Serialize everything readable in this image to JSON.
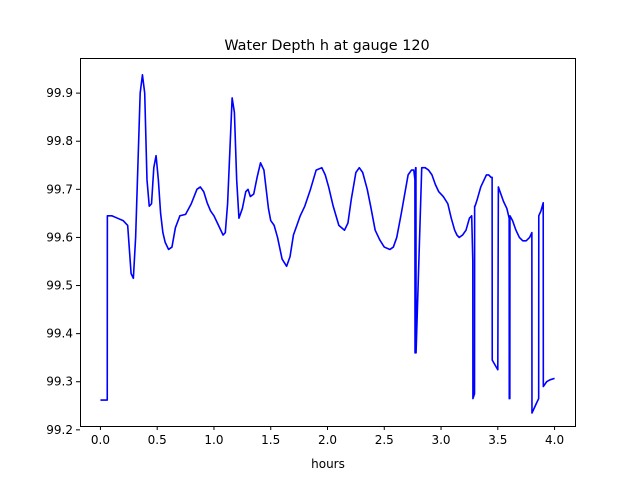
{
  "chart_data": {
    "type": "line",
    "title": "Water Depth h at gauge 120",
    "xlabel": "hours",
    "ylabel": "",
    "xlim": [
      -0.18,
      4.18
    ],
    "ylim": [
      99.208,
      99.973
    ],
    "xticks": [
      0.0,
      0.5,
      1.0,
      1.5,
      2.0,
      2.5,
      3.0,
      3.5,
      4.0
    ],
    "xtick_labels": [
      "0.0",
      "0.5",
      "1.0",
      "1.5",
      "2.0",
      "2.5",
      "3.0",
      "3.5",
      "4.0"
    ],
    "yticks": [
      99.2,
      99.3,
      99.4,
      99.5,
      99.6,
      99.7,
      99.8,
      99.9
    ],
    "ytick_labels": [
      "99.2",
      "99.3",
      "99.4",
      "99.5",
      "99.6",
      "99.7",
      "99.8",
      "99.9"
    ],
    "grid": false,
    "series": [
      {
        "color": "#0000ff",
        "x": [
          0.0,
          0.06,
          0.061,
          0.1,
          0.15,
          0.2,
          0.24,
          0.27,
          0.29,
          0.31,
          0.33,
          0.35,
          0.37,
          0.39,
          0.41,
          0.43,
          0.45,
          0.47,
          0.49,
          0.51,
          0.53,
          0.55,
          0.57,
          0.6,
          0.63,
          0.66,
          0.7,
          0.75,
          0.8,
          0.85,
          0.88,
          0.91,
          0.94,
          0.97,
          1.0,
          1.04,
          1.08,
          1.1,
          1.12,
          1.14,
          1.16,
          1.18,
          1.2,
          1.22,
          1.25,
          1.28,
          1.3,
          1.32,
          1.35,
          1.38,
          1.41,
          1.44,
          1.46,
          1.48,
          1.5,
          1.53,
          1.56,
          1.6,
          1.64,
          1.67,
          1.7,
          1.73,
          1.76,
          1.8,
          1.85,
          1.9,
          1.95,
          1.98,
          2.01,
          2.05,
          2.1,
          2.15,
          2.18,
          2.21,
          2.25,
          2.28,
          2.31,
          2.35,
          2.38,
          2.42,
          2.46,
          2.5,
          2.55,
          2.58,
          2.61,
          2.65,
          2.68,
          2.71,
          2.74,
          2.76,
          2.77,
          2.771,
          2.775,
          2.776,
          2.779,
          2.78,
          2.83,
          2.86,
          2.89,
          2.92,
          2.95,
          2.98,
          3.02,
          3.06,
          3.09,
          3.12,
          3.14,
          3.16,
          3.19,
          3.22,
          3.25,
          3.27,
          3.28,
          3.281,
          3.295,
          3.296,
          3.3,
          3.32,
          3.35,
          3.38,
          3.4,
          3.42,
          3.44,
          3.45,
          3.451,
          3.5,
          3.505,
          3.52,
          3.55,
          3.58,
          3.6,
          3.601,
          3.606,
          3.607,
          3.63,
          3.66,
          3.69,
          3.72,
          3.75,
          3.78,
          3.8,
          3.801,
          3.84,
          3.86,
          3.861,
          3.88,
          3.9,
          3.901,
          3.93,
          3.96,
          4.0
        ],
        "y": [
          99.262,
          99.262,
          99.645,
          99.645,
          99.64,
          99.635,
          99.625,
          99.525,
          99.515,
          99.6,
          99.75,
          99.9,
          99.938,
          99.9,
          99.72,
          99.665,
          99.67,
          99.745,
          99.77,
          99.72,
          99.65,
          99.61,
          99.59,
          99.575,
          99.58,
          99.62,
          99.645,
          99.648,
          99.67,
          99.7,
          99.705,
          99.695,
          99.672,
          99.655,
          99.645,
          99.625,
          99.605,
          99.61,
          99.67,
          99.78,
          99.89,
          99.86,
          99.72,
          99.64,
          99.66,
          99.695,
          99.7,
          99.685,
          99.69,
          99.725,
          99.755,
          99.74,
          99.7,
          99.66,
          99.635,
          99.625,
          99.6,
          99.555,
          99.54,
          99.56,
          99.605,
          99.625,
          99.645,
          99.665,
          99.7,
          99.74,
          99.745,
          99.73,
          99.705,
          99.665,
          99.625,
          99.615,
          99.63,
          99.68,
          99.735,
          99.745,
          99.735,
          99.7,
          99.665,
          99.615,
          99.595,
          99.58,
          99.575,
          99.58,
          99.6,
          99.65,
          99.69,
          99.73,
          99.74,
          99.74,
          99.72,
          99.36,
          99.36,
          99.745,
          99.745,
          99.36,
          99.745,
          99.745,
          99.74,
          99.73,
          99.71,
          99.695,
          99.685,
          99.67,
          99.64,
          99.615,
          99.605,
          99.6,
          99.605,
          99.615,
          99.64,
          99.645,
          99.55,
          99.265,
          99.275,
          99.665,
          99.665,
          99.68,
          99.705,
          99.72,
          99.73,
          99.73,
          99.725,
          99.725,
          99.345,
          99.325,
          99.705,
          99.695,
          99.675,
          99.66,
          99.64,
          99.265,
          99.265,
          99.645,
          99.635,
          99.615,
          99.6,
          99.593,
          99.593,
          99.6,
          99.61,
          99.235,
          99.255,
          99.265,
          99.645,
          99.655,
          99.672,
          99.29,
          99.3,
          99.304,
          99.307
        ]
      }
    ]
  }
}
